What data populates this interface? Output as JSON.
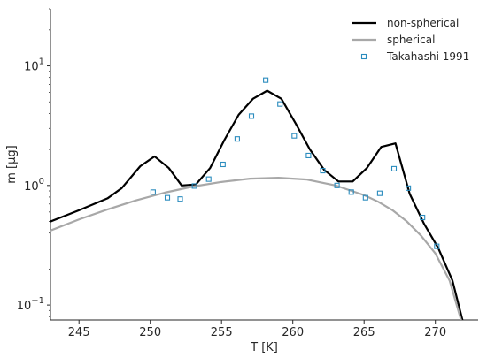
{
  "chart_data": {
    "type": "line",
    "title": "",
    "xlabel": "T [K]",
    "ylabel": "m [μg]",
    "xlim": [
      243,
      273
    ],
    "ylim": [
      0.075,
      30
    ],
    "yscale": "log",
    "xticks": [
      245,
      250,
      255,
      260,
      265,
      270
    ],
    "yticks": [
      {
        "value": 0.1,
        "base": "10",
        "exp": "−1"
      },
      {
        "value": 1,
        "base": "10",
        "exp": "0"
      },
      {
        "value": 10,
        "base": "10",
        "exp": "1"
      }
    ],
    "grid": false,
    "legend_position": "top-right",
    "series": [
      {
        "name": "non-spherical",
        "style": "line",
        "color": "#000000",
        "x": [
          243,
          245,
          247,
          248,
          249.3,
          250.3,
          251.3,
          252.2,
          253.2,
          254.2,
          255.2,
          256.2,
          257.2,
          258.2,
          259.2,
          260.2,
          261.2,
          262.2,
          263.2,
          264.2,
          265.2,
          266.2,
          267.2,
          268.2,
          269.2,
          270.2,
          271.2,
          271.9
        ],
        "y": [
          0.5,
          0.62,
          0.78,
          0.95,
          1.45,
          1.75,
          1.4,
          1.0,
          1.02,
          1.4,
          2.4,
          3.9,
          5.3,
          6.2,
          5.3,
          3.3,
          2.0,
          1.35,
          1.08,
          1.08,
          1.4,
          2.1,
          2.25,
          0.85,
          0.48,
          0.3,
          0.16,
          0.075
        ]
      },
      {
        "name": "spherical",
        "style": "line",
        "color": "#a8a8a8",
        "x": [
          243,
          245,
          247,
          249,
          251,
          253,
          255,
          257,
          259,
          261,
          263,
          265,
          266,
          267,
          268,
          269,
          270,
          271,
          271.8
        ],
        "y": [
          0.42,
          0.52,
          0.63,
          0.75,
          0.87,
          0.98,
          1.07,
          1.14,
          1.16,
          1.12,
          1.0,
          0.83,
          0.73,
          0.62,
          0.5,
          0.38,
          0.27,
          0.16,
          0.075
        ]
      },
      {
        "name": "Takahashi 1991",
        "style": "marker",
        "color": "#2b8cbe",
        "x": [
          250.2,
          251.2,
          252.1,
          253.1,
          254.1,
          255.1,
          256.1,
          257.1,
          258.1,
          259.1,
          260.1,
          261.1,
          262.1,
          263.1,
          264.1,
          265.1,
          266.1,
          267.1,
          268.1,
          269.1,
          270.1
        ],
        "y": [
          0.88,
          0.79,
          0.77,
          0.99,
          1.13,
          1.5,
          2.45,
          3.8,
          7.6,
          4.8,
          2.6,
          1.78,
          1.33,
          1.0,
          0.88,
          0.79,
          0.86,
          1.38,
          0.95,
          0.54,
          0.31
        ]
      }
    ]
  }
}
